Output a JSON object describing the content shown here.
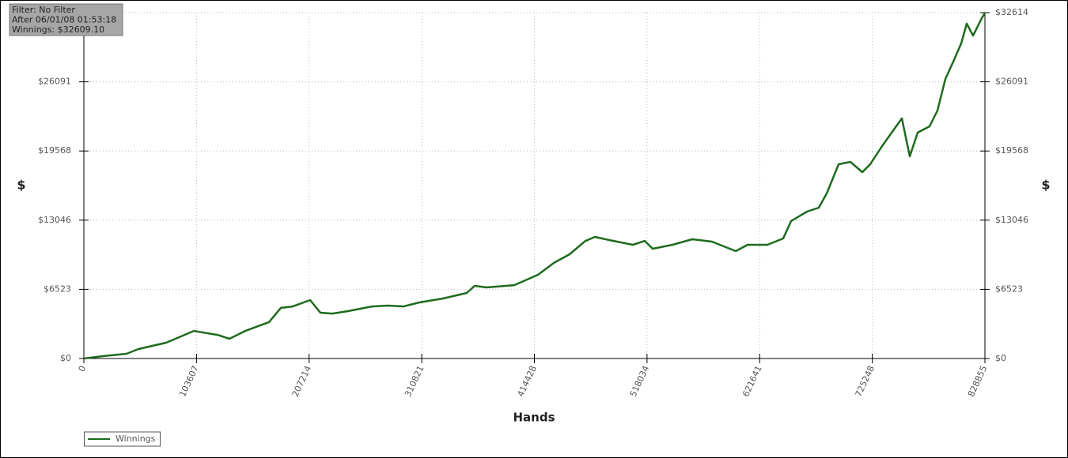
{
  "chart_data": {
    "type": "line",
    "info": [
      "Filter: No Filter",
      "After 06/01/08 01:53:18",
      "Winnings: $32609.10"
    ],
    "y_label": "$",
    "y2_label": "$",
    "x_label": "Hands",
    "x": [
      0,
      17465,
      39296,
      50211,
      75681,
      101150,
      122981,
      133897,
      148451,
      170282,
      181197,
      192113,
      208122,
      217582,
      228498,
      243052,
      264883,
      279437,
      293991,
      308545,
      330376,
      352207,
      359484,
      370399,
      395869,
      417700,
      432254,
      446808,
      461362,
      470094,
      483193,
      505024,
      515939,
      523216,
      541409,
      559601,
      577794,
      599625,
      610540,
      628733,
      643287,
      650564,
      665118,
      676033,
      683310,
      694226,
      705141,
      716057,
      723334,
      734249,
      752442,
      759719,
      766996,
      777911,
      785188,
      792465,
      799742,
      807019,
      812113,
      817934,
      825211,
      828855
    ],
    "series": [
      {
        "name": "Winnings",
        "color": "#1e6b1e",
        "values": [
          0,
          220,
          450,
          890,
          1490,
          2600,
          2230,
          1860,
          2600,
          3430,
          4770,
          4910,
          5510,
          4320,
          4240,
          4470,
          4910,
          4990,
          4910,
          5290,
          5660,
          6180,
          6850,
          6700,
          6920,
          7890,
          9010,
          9830,
          11090,
          11470,
          11170,
          10720,
          11090,
          10350,
          10720,
          11240,
          11020,
          10130,
          10720,
          10720,
          11320,
          12960,
          13850,
          14220,
          15560,
          18320,
          18540,
          17570,
          18320,
          20030,
          22640,
          19060,
          21300,
          21890,
          23380,
          26360,
          28000,
          29710,
          31570,
          30450,
          31940,
          32609.1
        ]
      }
    ],
    "xlim": [
      0,
      828855
    ],
    "xticks": [
      0,
      103607,
      207214,
      310821,
      414428,
      518034,
      621641,
      725248,
      828855
    ],
    "ylim": [
      0,
      32614
    ],
    "yticks": [
      {
        "value": 0,
        "label": "$0"
      },
      {
        "value": 6523,
        "label": "$6523"
      },
      {
        "value": 13046,
        "label": "$13046"
      },
      {
        "value": 19568,
        "label": "$19568"
      },
      {
        "value": 26091,
        "label": "$26091"
      },
      {
        "value": 32614,
        "label": "$32614"
      }
    ],
    "y2lim": [
      0,
      32614
    ],
    "y2ticks": [
      {
        "value": 0,
        "label": "$0"
      },
      {
        "value": 6523,
        "label": "$6523"
      },
      {
        "value": 13046,
        "label": "$13046"
      },
      {
        "value": 19568,
        "label": "$19568"
      },
      {
        "value": 26091,
        "label": "$26091"
      },
      {
        "value": 32614,
        "label": "$32614"
      }
    ],
    "grid": true
  }
}
